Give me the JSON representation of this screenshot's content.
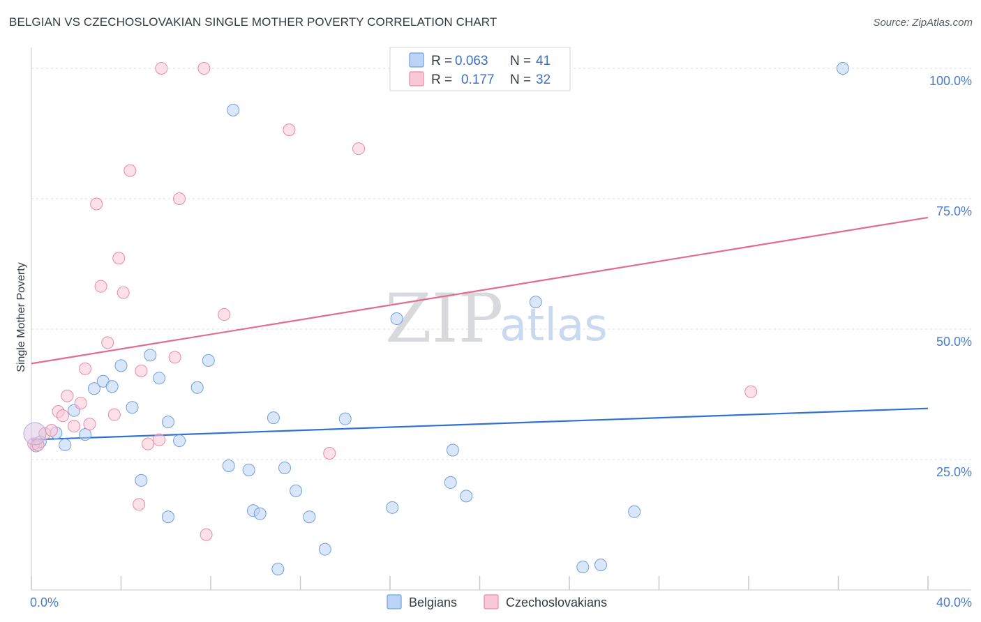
{
  "header": {
    "title": "BELGIAN VS CZECHOSLOVAKIAN SINGLE MOTHER POVERTY CORRELATION CHART",
    "source": "Source: ZipAtlas.com"
  },
  "watermark": {
    "zip": "ZIP",
    "atlas": "atlas"
  },
  "legend": {
    "series": [
      {
        "name": "Belgians",
        "r_label": "R =",
        "r_value": "0.063",
        "n_label": "N =",
        "n_value": "41",
        "fill": "#bcd4f5",
        "stroke": "#6f9fdc"
      },
      {
        "name": "Czechoslovakians",
        "r_label": "R =",
        "r_value": "0.177",
        "n_label": "N =",
        "n_value": "32",
        "fill": "#f9c8d6",
        "stroke": "#e889a6"
      }
    ]
  },
  "chart_data": {
    "type": "scatter",
    "title": "BELGIAN VS CZECHOSLOVAKIAN SINGLE MOTHER POVERTY CORRELATION CHART",
    "xlabel": "",
    "ylabel": "Single Mother Poverty",
    "xlim": [
      0,
      40
    ],
    "ylim": [
      0,
      100
    ],
    "x_tick_labels": [
      "0.0%",
      "40.0%"
    ],
    "y_tick_labels": [
      {
        "value": 100,
        "label": "100.0%"
      },
      {
        "value": 75,
        "label": "75.0%"
      },
      {
        "value": 50,
        "label": "50.0%"
      },
      {
        "value": 25,
        "label": "25.0%"
      }
    ],
    "grid": true,
    "series": [
      {
        "name": "Belgians",
        "color": "#6f9fdc",
        "fill": "#bcd4f5",
        "trend_color": "#2f72d0",
        "trend": {
          "x": [
            0,
            40
          ],
          "y": [
            28.8,
            34.8
          ]
        },
        "points": [
          [
            0.2,
            27.6
          ],
          [
            0.4,
            28.4
          ],
          [
            1.1,
            30.1
          ],
          [
            1.5,
            27.8
          ],
          [
            1.9,
            34.4
          ],
          [
            2.4,
            29.8
          ],
          [
            2.8,
            38.6
          ],
          [
            3.2,
            40.0
          ],
          [
            3.6,
            39.0
          ],
          [
            4.0,
            43.0
          ],
          [
            4.5,
            35.0
          ],
          [
            4.9,
            21.0
          ],
          [
            5.3,
            45.0
          ],
          [
            5.7,
            40.6
          ],
          [
            6.1,
            32.2
          ],
          [
            6.1,
            14.0
          ],
          [
            6.6,
            28.6
          ],
          [
            7.4,
            38.8
          ],
          [
            7.9,
            44.0
          ],
          [
            8.8,
            23.8
          ],
          [
            9.0,
            92.0
          ],
          [
            9.7,
            23.0
          ],
          [
            9.9,
            15.2
          ],
          [
            10.2,
            14.6
          ],
          [
            10.8,
            33.0
          ],
          [
            11.0,
            4.0
          ],
          [
            11.3,
            23.4
          ],
          [
            11.8,
            19.0
          ],
          [
            12.4,
            14.0
          ],
          [
            13.1,
            7.8
          ],
          [
            14.0,
            32.8
          ],
          [
            16.1,
            15.8
          ],
          [
            16.3,
            52.0
          ],
          [
            18.8,
            26.8
          ],
          [
            18.7,
            20.6
          ],
          [
            19.4,
            18.0
          ],
          [
            22.5,
            55.2
          ],
          [
            24.6,
            4.4
          ],
          [
            25.4,
            4.8
          ],
          [
            26.9,
            15.0
          ],
          [
            36.2,
            100.0
          ]
        ]
      },
      {
        "name": "Czechoslovakians",
        "color": "#e889a6",
        "fill": "#f9c8d6",
        "trend_color": "#e46a90",
        "trend": {
          "x": [
            0,
            40
          ],
          "y": [
            43.4,
            71.4
          ]
        },
        "points": [
          [
            0.1,
            28.0
          ],
          [
            0.3,
            27.8
          ],
          [
            0.6,
            30.0
          ],
          [
            0.9,
            30.6
          ],
          [
            1.2,
            34.2
          ],
          [
            1.4,
            33.4
          ],
          [
            1.6,
            37.2
          ],
          [
            1.9,
            31.4
          ],
          [
            2.2,
            35.8
          ],
          [
            2.4,
            42.4
          ],
          [
            2.6,
            31.8
          ],
          [
            2.9,
            74.0
          ],
          [
            3.1,
            58.2
          ],
          [
            3.4,
            47.4
          ],
          [
            3.7,
            33.6
          ],
          [
            3.9,
            63.6
          ],
          [
            4.1,
            57.0
          ],
          [
            4.4,
            80.4
          ],
          [
            4.8,
            16.4
          ],
          [
            4.9,
            42.0
          ],
          [
            5.2,
            28.0
          ],
          [
            5.7,
            28.8
          ],
          [
            5.8,
            100.0
          ],
          [
            6.4,
            44.6
          ],
          [
            6.6,
            75.0
          ],
          [
            7.7,
            100.0
          ],
          [
            7.8,
            10.6
          ],
          [
            8.6,
            52.8
          ],
          [
            11.5,
            88.2
          ],
          [
            13.3,
            26.2
          ],
          [
            14.6,
            84.6
          ],
          [
            32.1,
            38.0
          ]
        ]
      }
    ]
  }
}
